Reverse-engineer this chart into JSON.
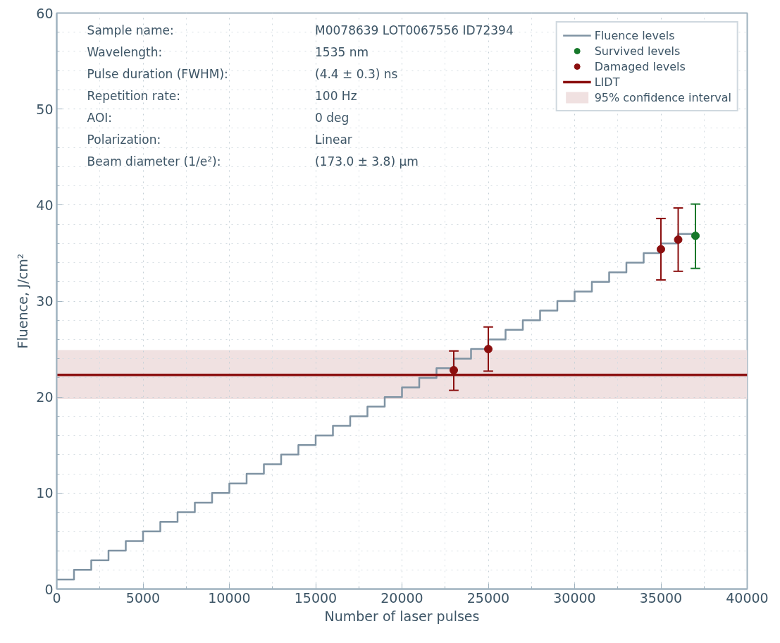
{
  "chart_data": {
    "type": "step",
    "xlabel": "Number of laser pulses",
    "ylabel": "Fluence, J/cm²",
    "xlim": [
      0,
      40000
    ],
    "ylim": [
      0,
      60
    ],
    "xticks": [
      0,
      5000,
      10000,
      15000,
      20000,
      25000,
      30000,
      35000,
      40000
    ],
    "yticks": [
      0,
      10,
      20,
      30,
      40,
      50,
      60
    ],
    "grid": true,
    "legend": "top right",
    "annotations": [
      "Sample name:\tM0078639 LOT0067556 ID72394",
      "Wavelength:\t1535 nm",
      "Pulse duration (FWHM):\t(4.4 ± 0.3) ns",
      "Repetition rate:\t100 Hz",
      "AOI:\t0 deg",
      "Polarization:\tLinear",
      "Beam diameter (1/e²):\t(173.0 ± 3.8) µm"
    ],
    "series": [
      {
        "name": "Fluence levels",
        "color": "#7f93a3",
        "x": [
          0,
          1000,
          2000,
          3000,
          4000,
          5000,
          6000,
          7000,
          8000,
          9000,
          10000,
          11000,
          12000,
          13000,
          14000,
          15000,
          16000,
          17000,
          18000,
          19000,
          20000,
          21000,
          22000,
          23000,
          24000,
          25000,
          26000,
          27000,
          28000,
          29000,
          30000,
          31000,
          32000,
          33000,
          34000,
          35000,
          36000,
          37000
        ],
        "values": [
          1,
          2,
          3,
          4,
          5,
          6,
          7,
          8,
          9,
          10,
          11,
          12,
          13,
          14,
          15,
          16,
          17,
          18,
          19,
          20,
          21,
          22,
          23,
          24,
          25,
          26,
          27,
          28,
          29,
          30,
          31,
          32,
          33,
          34,
          35,
          36,
          37,
          37
        ]
      },
      {
        "name": "Survived levels",
        "type": "scatter",
        "marker": "circle",
        "color": "#16782a",
        "x": [
          37000
        ],
        "values": [
          36.8
        ],
        "errors": [
          [
            33.4,
            40.1
          ]
        ]
      },
      {
        "name": "Damaged levels",
        "type": "scatter",
        "marker": "circle",
        "color": "#8b0f0f",
        "x": [
          23000,
          25000,
          35000,
          36000
        ],
        "values": [
          22.8,
          25.0,
          35.4,
          36.4
        ],
        "errors": [
          [
            20.7,
            24.8
          ],
          [
            22.7,
            27.3
          ],
          [
            32.2,
            38.6
          ],
          [
            33.1,
            39.7
          ]
        ]
      }
    ],
    "ref_lines": [
      {
        "axis": "y",
        "value": 22.3,
        "label": "LIDT",
        "color": "#8b0f0f",
        "line_style": "solid"
      }
    ],
    "bands": [
      {
        "axis": "y",
        "from": 19.8,
        "to": 24.9,
        "label": "95% confidence interval",
        "color": "#f0e1e1"
      }
    ]
  }
}
